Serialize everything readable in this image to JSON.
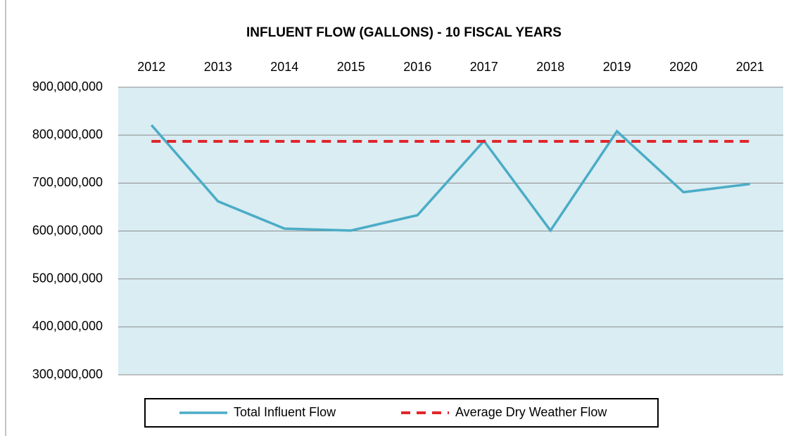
{
  "chart_data": {
    "type": "line",
    "title": "INFLUENT FLOW (GALLONS) - 10 FISCAL YEARS",
    "categories": [
      "2012",
      "2013",
      "2014",
      "2015",
      "2016",
      "2017",
      "2018",
      "2019",
      "2020",
      "2021"
    ],
    "series": [
      {
        "name": "Total Influent Flow",
        "color": "#4bacc6",
        "dash": false,
        "values": [
          821000000,
          662000000,
          605000000,
          601000000,
          633000000,
          788000000,
          601000000,
          808000000,
          681000000,
          698000000
        ]
      },
      {
        "name": "Average Dry Weather Flow",
        "color": "#e0262b",
        "dash": true,
        "values": [
          787000000,
          787000000,
          787000000,
          787000000,
          787000000,
          787000000,
          787000000,
          787000000,
          787000000,
          787000000
        ]
      }
    ],
    "ylim": [
      300000000,
      900000000
    ],
    "yticks": [
      {
        "value": 300000000,
        "label": "300,000,000"
      },
      {
        "value": 400000000,
        "label": "400,000,000"
      },
      {
        "value": 500000000,
        "label": "500,000,000"
      },
      {
        "value": 600000000,
        "label": "600,000,000"
      },
      {
        "value": 700000000,
        "label": "700,000,000"
      },
      {
        "value": 800000000,
        "label": "800,000,000"
      },
      {
        "value": 900000000,
        "label": "900,000,000"
      }
    ],
    "grid": true,
    "plot_background": "#d9edf3"
  }
}
